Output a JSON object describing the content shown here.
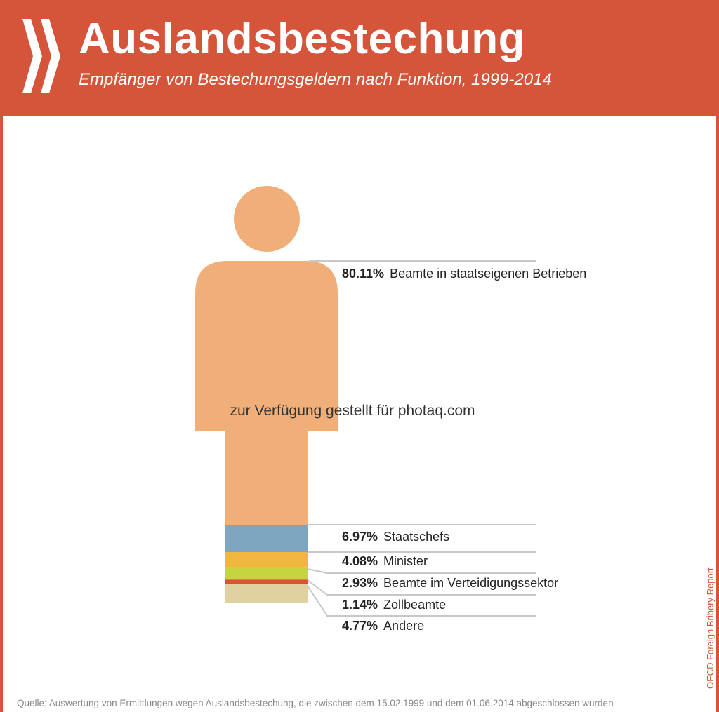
{
  "header": {
    "title": "Auslandsbestechung",
    "subtitle": "Empfänger von Bestechungsgeldern nach Funktion, 1999-2014",
    "logo_icon": "double-chevron-icon"
  },
  "chart_data": {
    "type": "stacked-pictogram",
    "title": "Auslandsbestechung",
    "subtitle": "Empfänger von Bestechungsgeldern nach Funktion, 1999-2014",
    "series": [
      {
        "name": "Beamte in staatseigenen Betrieben",
        "value": 80.11,
        "label": "80.11%",
        "color": "#f0ae78"
      },
      {
        "name": "Staatschefs",
        "value": 6.97,
        "label": "6.97%",
        "color": "#7fa6c0"
      },
      {
        "name": "Minister",
        "value": 4.08,
        "label": "4.08%",
        "color": "#f0b640"
      },
      {
        "name": "Beamte im Verteidigungssektor",
        "value": 2.93,
        "label": "2.93%",
        "color": "#c5d540"
      },
      {
        "name": "Zollbeamte",
        "value": 1.14,
        "label": "1.14%",
        "color": "#d95430"
      },
      {
        "name": "Andere",
        "value": 4.77,
        "label": "4.77%",
        "color": "#dfd1a0"
      }
    ]
  },
  "watermark": "zur Verfügung gestellt für photaq.com",
  "source": "OECD Foreign Bribery Report",
  "footer": "Quelle: Auswertung von Ermittlungen wegen Auslandsbestechung, die zwischen dem 15.02.1999 und dem 01.06.2014 abgeschlossen wurden"
}
